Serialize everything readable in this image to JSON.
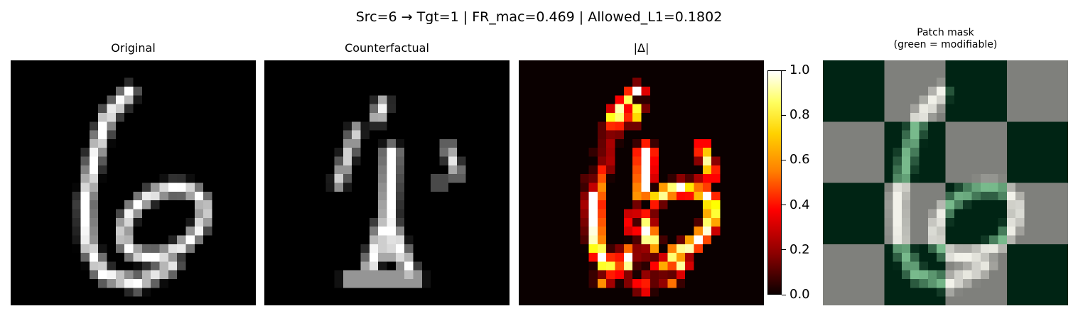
{
  "chart_data": {
    "suptitle": "Src=6 → Tgt=1 | FR_mac=0.469 | Allowed_L1=0.1802",
    "panels": [
      {
        "title": "Original",
        "type": "heatmap",
        "colormap": "gray"
      },
      {
        "title": "Counterfactual",
        "type": "heatmap",
        "colormap": "gray"
      },
      {
        "title": "|Δ|",
        "type": "heatmap",
        "colormap": "hot"
      },
      {
        "title": "Patch mask",
        "subtitle": "(green = modifiable)",
        "type": "heatmap",
        "colormap": "overlay"
      }
    ],
    "colorbar": {
      "range": [
        0.0,
        1.0
      ],
      "ticks": [
        "0.0",
        "0.2",
        "0.4",
        "0.6",
        "0.8",
        "1.0"
      ]
    }
  }
}
